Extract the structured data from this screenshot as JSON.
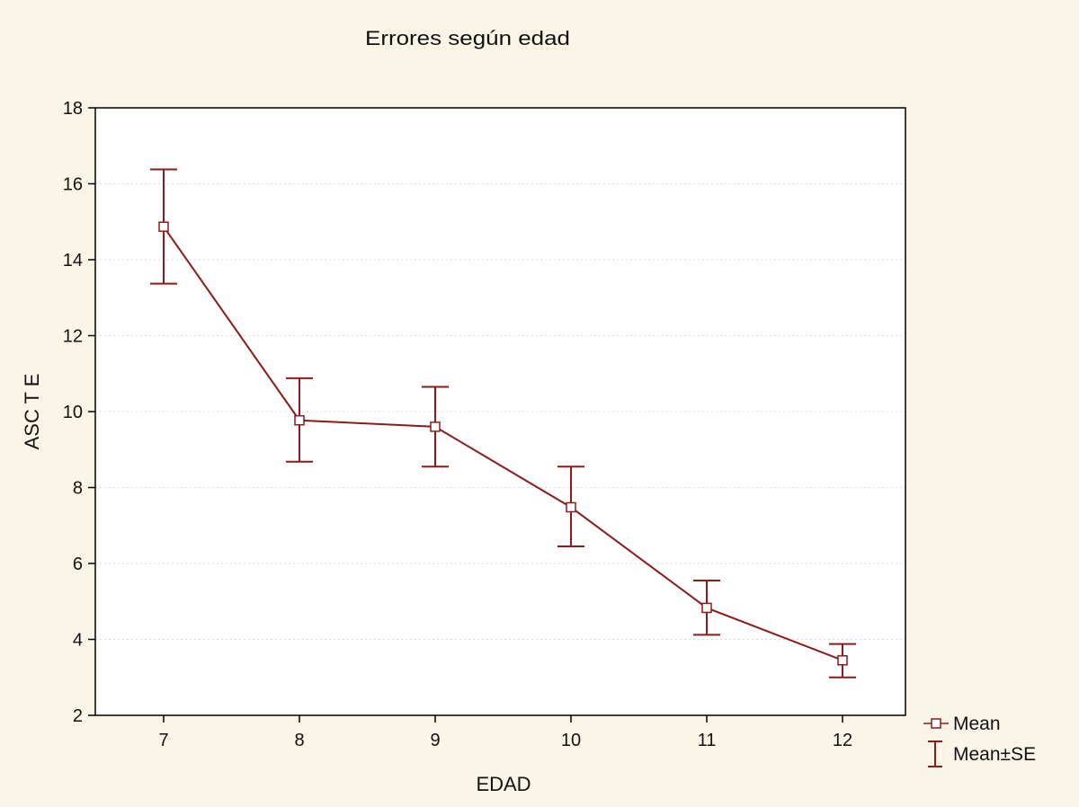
{
  "chart_data": {
    "type": "line",
    "title": "Errores según edad",
    "xlabel": "EDAD",
    "ylabel": "ASC T E",
    "categories": [
      "7",
      "8",
      "9",
      "10",
      "11",
      "12"
    ],
    "yticks": [
      "2",
      "4",
      "6",
      "8",
      "10",
      "12",
      "14",
      "16",
      "18"
    ],
    "ylim": [
      2,
      18
    ],
    "grid": true,
    "legend_position": "bottom-right",
    "series": [
      {
        "name": "Mean",
        "values": [
          14.87,
          9.77,
          9.6,
          7.48,
          4.83,
          3.45
        ],
        "lower": [
          13.37,
          8.68,
          8.55,
          6.45,
          4.12,
          3.0
        ],
        "upper": [
          16.38,
          10.88,
          10.65,
          8.55,
          5.55,
          3.88
        ]
      }
    ],
    "legend": [
      {
        "label": "Mean",
        "symbol": "square-marker"
      },
      {
        "label": "Mean±SE",
        "symbol": "error-bar"
      }
    ],
    "colors": {
      "line": "#8b1a1a",
      "marker_fill": "#ffffff",
      "plot_bg": "#ffffff",
      "grid": "#d8d8d8"
    }
  }
}
